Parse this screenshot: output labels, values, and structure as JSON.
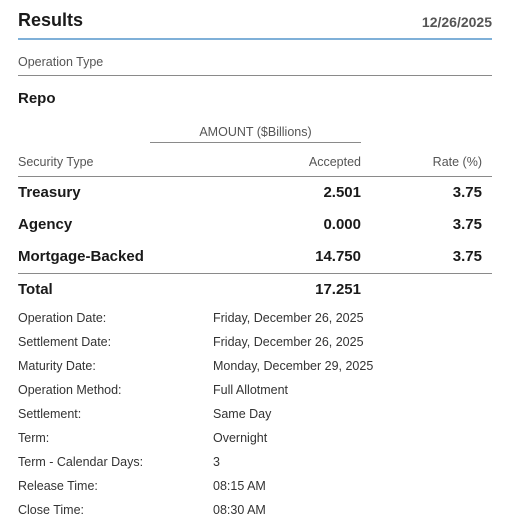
{
  "header": {
    "title": "Results",
    "date": "12/26/2025"
  },
  "operation": {
    "type_label": "Operation Type",
    "type_value": "Repo"
  },
  "table": {
    "group_header": "AMOUNT ($Billions)",
    "columns": {
      "security": "Security Type",
      "accepted": "Accepted",
      "rate": "Rate (%)"
    },
    "rows": [
      {
        "security": "Treasury",
        "accepted": "2.501",
        "rate": "3.75"
      },
      {
        "security": "Agency",
        "accepted": "0.000",
        "rate": "3.75"
      },
      {
        "security": "Mortgage-Backed",
        "accepted": "14.750",
        "rate": "3.75"
      }
    ],
    "total": {
      "label": "Total",
      "accepted": "17.251"
    }
  },
  "details": [
    {
      "label": "Operation Date:",
      "value": "Friday, December 26, 2025"
    },
    {
      "label": "Settlement Date:",
      "value": "Friday, December 26, 2025"
    },
    {
      "label": "Maturity Date:",
      "value": "Monday, December 29, 2025"
    },
    {
      "label": "Operation Method:",
      "value": "Full Allotment"
    },
    {
      "label": "Settlement:",
      "value": "Same Day"
    },
    {
      "label": "Term:",
      "value": "Overnight"
    },
    {
      "label": "Term - Calendar Days:",
      "value": "3"
    },
    {
      "label": "Release Time:",
      "value": "08:15 AM"
    },
    {
      "label": "Close Time:",
      "value": "08:30 AM"
    }
  ]
}
